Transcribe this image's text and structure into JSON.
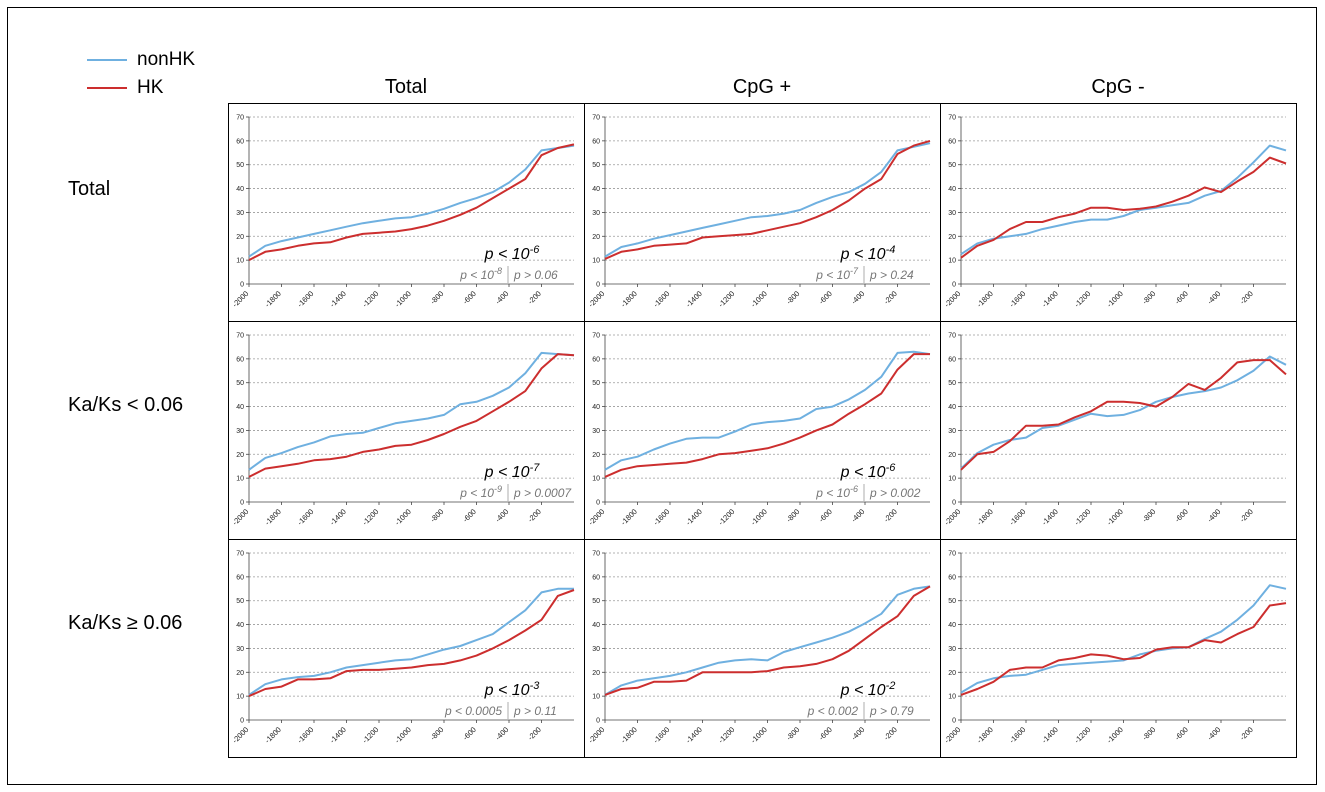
{
  "legend": [
    {
      "name": "nonHK",
      "color": "#6fb0e0"
    },
    {
      "name": "HK",
      "color": "#cc2e2e"
    }
  ],
  "column_headers": [
    "Total",
    "CpG +",
    "CpG -"
  ],
  "row_headers": [
    "Total",
    "Ka/Ks < 0.06",
    "Ka/Ks ≥ 0.06"
  ],
  "chart_data": [
    {
      "type": "line",
      "row": "Total",
      "column": "Total",
      "x": [
        -2000,
        -1900,
        -1800,
        -1700,
        -1600,
        -1500,
        -1400,
        -1300,
        -1200,
        -1100,
        -1000,
        -900,
        -800,
        -700,
        -600,
        -500,
        -400,
        -300,
        -200,
        -100,
        0
      ],
      "ylim": [
        0,
        70
      ],
      "yticks": [
        0,
        10,
        20,
        30,
        40,
        50,
        60,
        70
      ],
      "xticks": [
        "-2000",
        "-1800",
        "-1600",
        "-1400",
        "-1200",
        "-1000",
        "-800",
        "-600",
        "-400",
        "-200"
      ],
      "series": [
        {
          "name": "nonHK",
          "values": [
            11.5,
            16,
            18,
            19.5,
            21,
            22.5,
            24,
            25.5,
            26.5,
            27.5,
            28,
            29.5,
            31.5,
            34,
            36,
            38.5,
            42.5,
            48,
            56,
            57,
            58
          ]
        },
        {
          "name": "HK",
          "values": [
            10,
            13.5,
            14.5,
            16,
            17,
            17.5,
            19.5,
            21,
            21.5,
            22,
            23,
            24.5,
            26.5,
            29,
            32,
            36,
            40,
            44,
            54,
            57,
            58.5
          ]
        }
      ],
      "annotation": {
        "main_prefix": "p < 10",
        "main_exp": "-6",
        "left_prefix": "p < 10",
        "left_exp": "-8",
        "right": "p > 0.06"
      }
    },
    {
      "type": "line",
      "row": "Total",
      "column": "CpG +",
      "x": [
        -2000,
        -1900,
        -1800,
        -1700,
        -1600,
        -1500,
        -1400,
        -1300,
        -1200,
        -1100,
        -1000,
        -900,
        -800,
        -700,
        -600,
        -500,
        -400,
        -300,
        -200,
        -100,
        0
      ],
      "ylim": [
        0,
        70
      ],
      "yticks": [
        0,
        10,
        20,
        30,
        40,
        50,
        60,
        70
      ],
      "xticks": [
        "-2000",
        "-1800",
        "-1600",
        "-1400",
        "-1200",
        "-1000",
        "-800",
        "-600",
        "-400",
        "-200"
      ],
      "series": [
        {
          "name": "nonHK",
          "values": [
            11.5,
            15.5,
            17,
            19,
            20.5,
            22,
            23.5,
            25,
            26.5,
            28,
            28.5,
            29.5,
            31,
            34,
            36.5,
            38.5,
            42,
            47,
            56,
            57.5,
            59
          ]
        },
        {
          "name": "HK",
          "values": [
            10.5,
            13.5,
            14.5,
            16,
            16.5,
            17,
            19.5,
            20,
            20.5,
            21,
            22.5,
            24,
            25.5,
            28,
            31,
            35,
            40,
            44,
            54.5,
            58,
            60
          ]
        }
      ],
      "annotation": {
        "main_prefix": "p < 10",
        "main_exp": "-4",
        "left_prefix": "p < 10",
        "left_exp": "-7",
        "right": "p > 0.24"
      }
    },
    {
      "type": "line",
      "row": "Total",
      "column": "CpG -",
      "x": [
        -2000,
        -1900,
        -1800,
        -1700,
        -1600,
        -1500,
        -1400,
        -1300,
        -1200,
        -1100,
        -1000,
        -900,
        -800,
        -700,
        -600,
        -500,
        -400,
        -300,
        -200,
        -100,
        0
      ],
      "ylim": [
        0,
        70
      ],
      "yticks": [
        0,
        10,
        20,
        30,
        40,
        50,
        60,
        70
      ],
      "xticks": [
        "-2000",
        "-1800",
        "-1600",
        "-1400",
        "-1200",
        "-1000",
        "-800",
        "-600",
        "-400",
        "-200"
      ],
      "series": [
        {
          "name": "nonHK",
          "values": [
            12.5,
            17,
            19,
            20,
            21,
            23,
            24.5,
            26,
            27,
            27,
            28.5,
            31,
            32,
            33,
            34,
            37,
            39,
            44.5,
            51,
            58,
            56
          ]
        },
        {
          "name": "HK",
          "values": [
            11,
            16,
            18.5,
            23,
            26,
            26,
            28,
            29.5,
            32,
            32,
            31,
            31.5,
            32.5,
            34.5,
            37,
            40.5,
            38.5,
            43,
            47,
            53,
            50.5
          ]
        }
      ],
      "annotation": {
        "main_prefix": "",
        "main_exp": "",
        "left_prefix": "",
        "left_exp": "",
        "right": ""
      }
    },
    {
      "type": "line",
      "row": "Ka/Ks < 0.06",
      "column": "Total",
      "x": [
        -2000,
        -1900,
        -1800,
        -1700,
        -1600,
        -1500,
        -1400,
        -1300,
        -1200,
        -1100,
        -1000,
        -900,
        -800,
        -700,
        -600,
        -500,
        -400,
        -300,
        -200,
        -100,
        0
      ],
      "ylim": [
        0,
        70
      ],
      "yticks": [
        0,
        10,
        20,
        30,
        40,
        50,
        60,
        70
      ],
      "xticks": [
        "-2000",
        "-1800",
        "-1600",
        "-1400",
        "-1200",
        "-1000",
        "-800",
        "-600",
        "-400",
        "-200"
      ],
      "series": [
        {
          "name": "nonHK",
          "values": [
            13.5,
            18.5,
            20.5,
            23,
            25,
            27.5,
            28.5,
            29,
            31,
            33,
            34,
            35,
            36.5,
            41,
            42,
            44.5,
            48,
            54,
            62.5,
            62,
            61.5
          ]
        },
        {
          "name": "HK",
          "values": [
            10.5,
            14,
            15,
            16,
            17.5,
            18,
            19,
            21,
            22,
            23.5,
            24,
            26,
            28.5,
            31.5,
            34,
            38,
            42,
            46.5,
            56,
            62,
            61.5
          ]
        }
      ],
      "annotation": {
        "main_prefix": "p < 10",
        "main_exp": "-7",
        "left_prefix": "p < 10",
        "left_exp": "-9",
        "right": "p > 0.0007"
      }
    },
    {
      "type": "line",
      "row": "Ka/Ks < 0.06",
      "column": "CpG +",
      "x": [
        -2000,
        -1900,
        -1800,
        -1700,
        -1600,
        -1500,
        -1400,
        -1300,
        -1200,
        -1100,
        -1000,
        -900,
        -800,
        -700,
        -600,
        -500,
        -400,
        -300,
        -200,
        -100,
        0
      ],
      "ylim": [
        0,
        70
      ],
      "yticks": [
        0,
        10,
        20,
        30,
        40,
        50,
        60,
        70
      ],
      "xticks": [
        "-2000",
        "-1800",
        "-1600",
        "-1400",
        "-1200",
        "-1000",
        "-800",
        "-600",
        "-400",
        "-200"
      ],
      "series": [
        {
          "name": "nonHK",
          "values": [
            13.5,
            17.5,
            19,
            22,
            24.5,
            26.5,
            27,
            27,
            29.5,
            32.5,
            33.5,
            34,
            35,
            39,
            40,
            43,
            47,
            52.5,
            62.5,
            63,
            62
          ]
        },
        {
          "name": "HK",
          "values": [
            10.5,
            13.5,
            15,
            15.5,
            16,
            16.5,
            18,
            20,
            20.5,
            21.5,
            22.5,
            24.5,
            27,
            30,
            32.5,
            37,
            41,
            45.5,
            55.5,
            62,
            62
          ]
        }
      ],
      "annotation": {
        "main_prefix": "p < 10",
        "main_exp": "-6",
        "left_prefix": "p < 10",
        "left_exp": "-6",
        "right": "p > 0.002"
      }
    },
    {
      "type": "line",
      "row": "Ka/Ks < 0.06",
      "column": "CpG -",
      "x": [
        -2000,
        -1900,
        -1800,
        -1700,
        -1600,
        -1500,
        -1400,
        -1300,
        -1200,
        -1100,
        -1000,
        -900,
        -800,
        -700,
        -600,
        -500,
        -400,
        -300,
        -200,
        -100,
        0
      ],
      "ylim": [
        0,
        70
      ],
      "yticks": [
        0,
        10,
        20,
        30,
        40,
        50,
        60,
        70
      ],
      "xticks": [
        "-2000",
        "-1800",
        "-1600",
        "-1400",
        "-1200",
        "-1000",
        "-800",
        "-600",
        "-400",
        "-200"
      ],
      "series": [
        {
          "name": "nonHK",
          "values": [
            14,
            20.5,
            24,
            26,
            27,
            31,
            32,
            34.5,
            37,
            36,
            36.5,
            38.5,
            42,
            44,
            45.5,
            46.5,
            48,
            51,
            55,
            61,
            57.5
          ]
        },
        {
          "name": "HK",
          "values": [
            13.5,
            20,
            21,
            25.5,
            32,
            32,
            32.5,
            35.5,
            38,
            42,
            42,
            41.5,
            40,
            44,
            49.5,
            47,
            52,
            58.5,
            59.5,
            59.5,
            53.5
          ]
        }
      ],
      "annotation": {
        "main_prefix": "",
        "main_exp": "",
        "left_prefix": "",
        "left_exp": "",
        "right": ""
      }
    },
    {
      "type": "line",
      "row": "Ka/Ks ≥ 0.06",
      "column": "Total",
      "x": [
        -2000,
        -1900,
        -1800,
        -1700,
        -1600,
        -1500,
        -1400,
        -1300,
        -1200,
        -1100,
        -1000,
        -900,
        -800,
        -700,
        -600,
        -500,
        -400,
        -300,
        -200,
        -100,
        0
      ],
      "ylim": [
        0,
        70
      ],
      "yticks": [
        0,
        10,
        20,
        30,
        40,
        50,
        60,
        70
      ],
      "xticks": [
        "-2000",
        "-1800",
        "-1600",
        "-1400",
        "-1200",
        "-1000",
        "-800",
        "-600",
        "-400",
        "-200"
      ],
      "series": [
        {
          "name": "nonHK",
          "values": [
            10.5,
            15,
            17,
            18,
            18.5,
            20,
            22,
            23,
            24,
            25,
            25.5,
            27.5,
            29.5,
            31,
            33.5,
            36,
            41,
            46,
            53.5,
            55,
            55
          ]
        },
        {
          "name": "HK",
          "values": [
            10,
            13,
            14,
            17,
            17,
            17.5,
            20.5,
            21,
            21,
            21.5,
            22,
            23,
            23.5,
            25,
            27,
            30,
            33.5,
            37.5,
            42,
            52,
            54.5
          ]
        }
      ],
      "annotation": {
        "main_prefix": "p < 10",
        "main_exp": "-3",
        "left_prefix": "p < 0.0005",
        "left_exp": "",
        "right": "p > 0.11"
      }
    },
    {
      "type": "line",
      "row": "Ka/Ks ≥ 0.06",
      "column": "CpG +",
      "x": [
        -2000,
        -1900,
        -1800,
        -1700,
        -1600,
        -1500,
        -1400,
        -1300,
        -1200,
        -1100,
        -1000,
        -900,
        -800,
        -700,
        -600,
        -500,
        -400,
        -300,
        -200,
        -100,
        0
      ],
      "ylim": [
        0,
        70
      ],
      "yticks": [
        0,
        10,
        20,
        30,
        40,
        50,
        60,
        70
      ],
      "xticks": [
        "-2000",
        "-1800",
        "-1600",
        "-1400",
        "-1200",
        "-1000",
        "-800",
        "-600",
        "-400",
        "-200"
      ],
      "series": [
        {
          "name": "nonHK",
          "values": [
            10.5,
            14.5,
            16.5,
            17.5,
            18.5,
            20,
            22,
            24,
            25,
            25.5,
            25,
            28.5,
            30.5,
            32.5,
            34.5,
            37,
            40.5,
            44.5,
            52.5,
            55,
            56
          ]
        },
        {
          "name": "HK",
          "values": [
            10.5,
            13,
            13.5,
            16,
            16,
            16.5,
            20,
            20,
            20,
            20,
            20.5,
            22,
            22.5,
            23.5,
            25.5,
            29,
            34,
            39,
            43.5,
            52,
            56
          ]
        }
      ],
      "annotation": {
        "main_prefix": "p < 10",
        "main_exp": "-2",
        "left_prefix": "p < 0.002",
        "left_exp": "",
        "right": "p > 0.79"
      }
    },
    {
      "type": "line",
      "row": "Ka/Ks ≥ 0.06",
      "column": "CpG -",
      "x": [
        -2000,
        -1900,
        -1800,
        -1700,
        -1600,
        -1500,
        -1400,
        -1300,
        -1200,
        -1100,
        -1000,
        -900,
        -800,
        -700,
        -600,
        -500,
        -400,
        -300,
        -200,
        -100,
        0
      ],
      "ylim": [
        0,
        70
      ],
      "yticks": [
        0,
        10,
        20,
        30,
        40,
        50,
        60,
        70
      ],
      "xticks": [
        "-2000",
        "-1800",
        "-1600",
        "-1400",
        "-1200",
        "-1000",
        "-800",
        "-600",
        "-400",
        "-200"
      ],
      "series": [
        {
          "name": "nonHK",
          "values": [
            11.5,
            15.5,
            17.5,
            18.5,
            19,
            21,
            23,
            23.5,
            24,
            24.5,
            25,
            27.5,
            29,
            30,
            30.5,
            34,
            37,
            42,
            48,
            56.5,
            55
          ]
        },
        {
          "name": "HK",
          "values": [
            10.5,
            13,
            16,
            21,
            22,
            22,
            25,
            26,
            27.5,
            27,
            25.5,
            26,
            29.5,
            30.5,
            30.5,
            33.5,
            32.5,
            36,
            39,
            48,
            49
          ]
        }
      ],
      "annotation": {
        "main_prefix": "",
        "main_exp": "",
        "left_prefix": "",
        "left_exp": "",
        "right": ""
      }
    }
  ]
}
